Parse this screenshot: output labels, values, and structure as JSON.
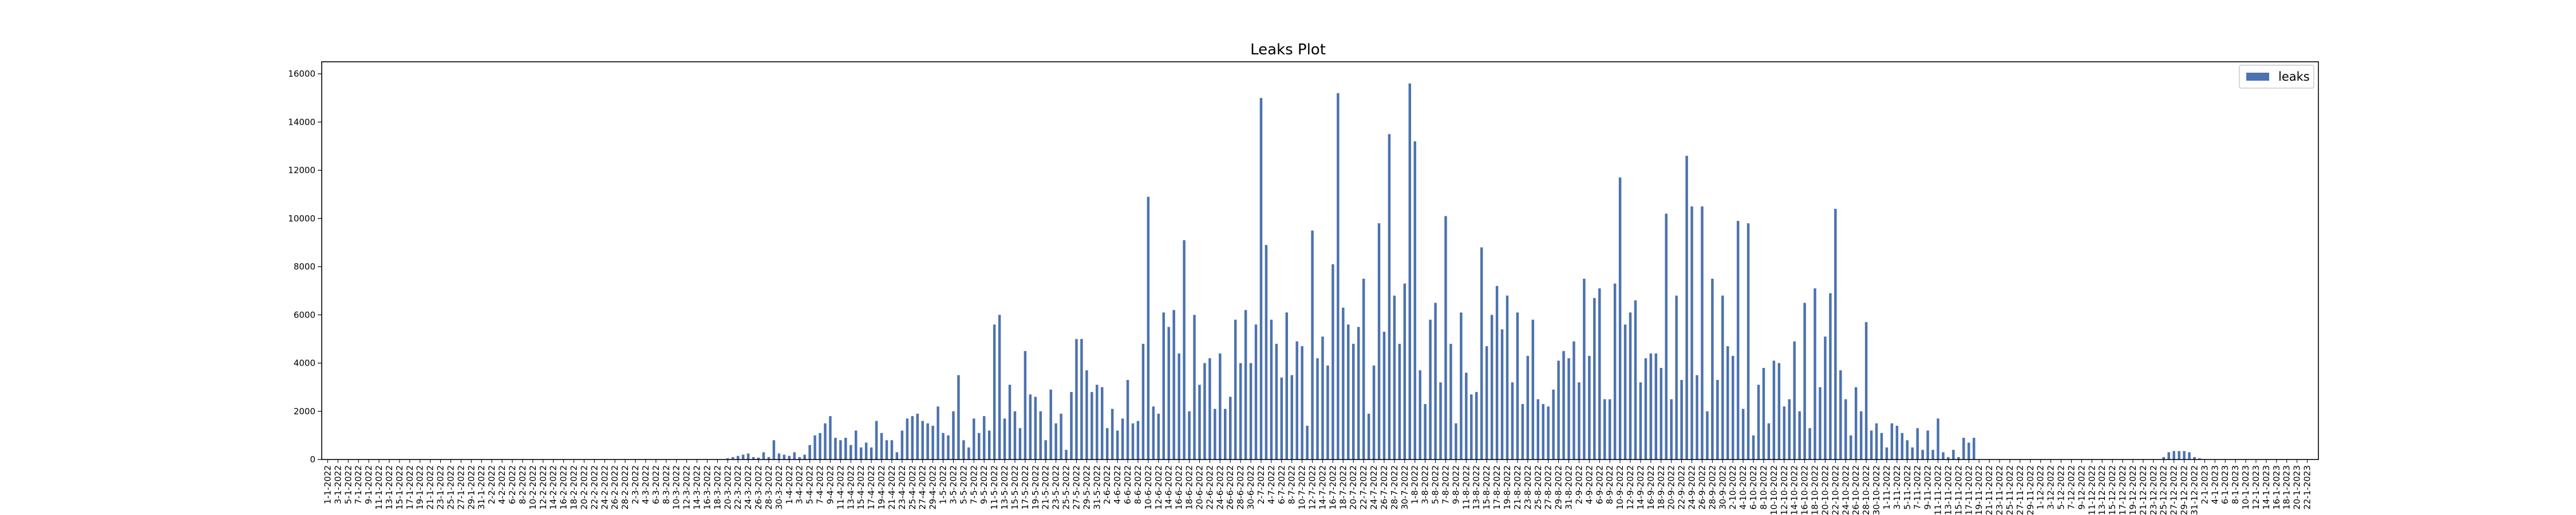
{
  "chart_data": {
    "type": "bar",
    "title": "Leaks Plot",
    "xlabel": "",
    "ylabel": "",
    "ylim": [
      0,
      16500
    ],
    "yticks": [
      0,
      2000,
      4000,
      6000,
      8000,
      10000,
      12000,
      14000,
      16000
    ],
    "legend": {
      "placement": "top-right",
      "label": "leaks"
    },
    "colors": {
      "bar": "#4c72b0",
      "axis": "#000000"
    },
    "start_date": "2022-01-01",
    "n_days": 365,
    "values": [
      0,
      0,
      0,
      0,
      0,
      0,
      0,
      0,
      0,
      0,
      0,
      0,
      0,
      0,
      0,
      0,
      0,
      0,
      0,
      0,
      0,
      0,
      0,
      0,
      0,
      0,
      0,
      0,
      0,
      0,
      0,
      0,
      0,
      0,
      0,
      0,
      0,
      0,
      0,
      0,
      0,
      0,
      0,
      0,
      0,
      0,
      0,
      0,
      0,
      0,
      0,
      0,
      0,
      0,
      0,
      0,
      0,
      0,
      0,
      0,
      0,
      0,
      0,
      0,
      0,
      0,
      0,
      0,
      0,
      0,
      0,
      0,
      0,
      0,
      0,
      0,
      0,
      0,
      50,
      100,
      150,
      200,
      250,
      100,
      80,
      300,
      100,
      800,
      250,
      200,
      150,
      300,
      100,
      200,
      600,
      1000,
      1100,
      1500,
      1800,
      900,
      800,
      900,
      600,
      1200,
      500,
      700,
      500,
      1600,
      1100,
      800,
      800,
      300,
      1200,
      1700,
      1800,
      1900,
      1600,
      1500,
      1400,
      2200,
      1100,
      1000,
      2000,
      3500,
      800,
      500,
      1700,
      1100,
      1800,
      1200,
      5600,
      6000,
      1700,
      3100,
      2000,
      1300,
      4500,
      2700,
      2600,
      2000,
      800,
      2900,
      1500,
      1900,
      400,
      2800,
      5000,
      5000,
      3700,
      2800,
      3100,
      3000,
      1300,
      2100,
      1200,
      1700,
      3300,
      1500,
      1600,
      4800,
      10900,
      2200,
      1900,
      6100,
      5500,
      6200,
      4400,
      9100,
      2000,
      6000,
      3100,
      4000,
      4200,
      2100,
      4400,
      2100,
      2600,
      5800,
      4000,
      6200,
      4000,
      5600,
      15000,
      8900,
      5800,
      4800,
      3400,
      6100,
      3500,
      4900,
      4700,
      1400,
      9500,
      4200,
      5100,
      3900,
      8100,
      15200,
      6300,
      5600,
      4800,
      5500,
      7500,
      1900,
      3900,
      9800,
      5300,
      13500,
      6800,
      4800,
      7300,
      15600,
      13200,
      3700,
      2300,
      5800,
      6500,
      3200,
      10100,
      4800,
      1500,
      6100,
      3600,
      2700,
      2800,
      8800,
      4700,
      6000,
      7200,
      5400,
      6800,
      3200,
      6100,
      2300,
      4300,
      5800,
      2500,
      2300,
      2200,
      2900,
      4100,
      4500,
      4200,
      4900,
      3200,
      7500,
      4300,
      6700,
      7100,
      2500,
      2500,
      7300,
      11700,
      5600,
      6100,
      6600,
      3200,
      4200,
      4400,
      4400,
      3800,
      10200,
      2500,
      6800,
      3300,
      12600,
      10500,
      3500,
      10500,
      2000,
      7500,
      3300,
      6800,
      4700,
      4300,
      9900,
      2100,
      9800,
      1000,
      3100,
      3800,
      1500,
      4100,
      4000,
      2200,
      2500,
      4900,
      2000,
      6500,
      1300,
      7100,
      3000,
      5100,
      6900,
      10400,
      3700,
      2500,
      1000,
      3000,
      2000,
      5700,
      1200,
      1500,
      1100,
      500,
      1500,
      1400,
      1100,
      800,
      500,
      1300,
      400,
      1200,
      400,
      1700,
      300,
      100,
      400,
      100,
      900,
      700,
      900,
      0,
      0,
      0,
      0,
      0,
      0,
      0,
      0,
      0,
      0,
      0,
      0,
      0,
      0,
      0,
      0,
      0,
      0,
      0,
      0,
      0,
      0,
      0,
      0,
      0,
      0,
      0,
      0,
      0,
      0,
      0,
      0,
      0,
      0,
      0,
      0,
      100,
      300,
      350,
      350,
      350,
      300,
      100,
      50,
      0,
      0,
      0,
      0,
      0,
      0,
      0,
      0,
      0,
      0,
      0,
      0,
      0,
      0,
      0,
      0,
      0,
      0,
      0,
      0,
      0,
      0
    ]
  }
}
